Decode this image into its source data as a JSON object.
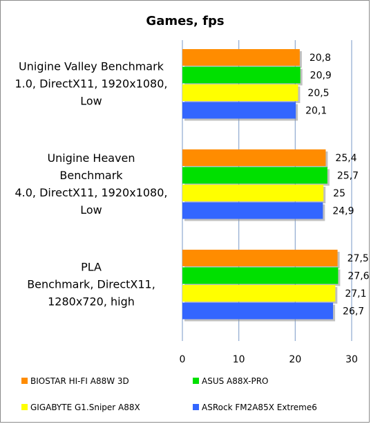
{
  "chart_data": {
    "type": "bar",
    "orientation": "horizontal",
    "title": "Games,  fps",
    "categories": [
      "Unigine Valley Benchmark 1.0, DirectX11, 1920x1080, Low",
      "Unigine Heaven Benchmark 4.0, DirectX11, 1920x1080, Low",
      "PLA Benchmark, DirectX11, 1280x720, high"
    ],
    "category_lines": [
      [
        "Unigine Valley Benchmark",
        "1.0, DirectX11, 1920x1080,",
        "Low"
      ],
      [
        "Unigine Heaven",
        "Benchmark",
        "4.0, DirectX11, 1920x1080,",
        "Low"
      ],
      [
        "PLA",
        "Benchmark, DirectX11,",
        "1280x720, high"
      ]
    ],
    "series": [
      {
        "name": "BIOSTAR HI-FI A88W 3D",
        "color": "#FF8C00",
        "values": [
          20.8,
          25.4,
          27.5
        ],
        "labels": [
          "20,8",
          "25,4",
          "27,5"
        ]
      },
      {
        "name": "ASUS A88X-PRO",
        "color": "#00E000",
        "values": [
          20.9,
          25.7,
          27.6
        ],
        "labels": [
          "20,9",
          "25,7",
          "27,6"
        ]
      },
      {
        "name": "GIGABYTE G1.Sniper A88X",
        "color": "#FFFF00",
        "values": [
          20.5,
          25,
          27.1
        ],
        "labels": [
          "20,5",
          "25",
          "27,1"
        ]
      },
      {
        "name": "ASRock FM2A85X Extreme6",
        "color": "#3366FF",
        "values": [
          20.1,
          24.9,
          26.7
        ],
        "labels": [
          "20,1",
          "24,9",
          "26,7"
        ]
      }
    ],
    "xlim": [
      0,
      30
    ],
    "xticks": [
      0,
      10,
      20,
      30
    ],
    "xtick_labels": [
      "0",
      "10",
      "20",
      "30"
    ],
    "grid": true,
    "legend_position": "bottom"
  }
}
